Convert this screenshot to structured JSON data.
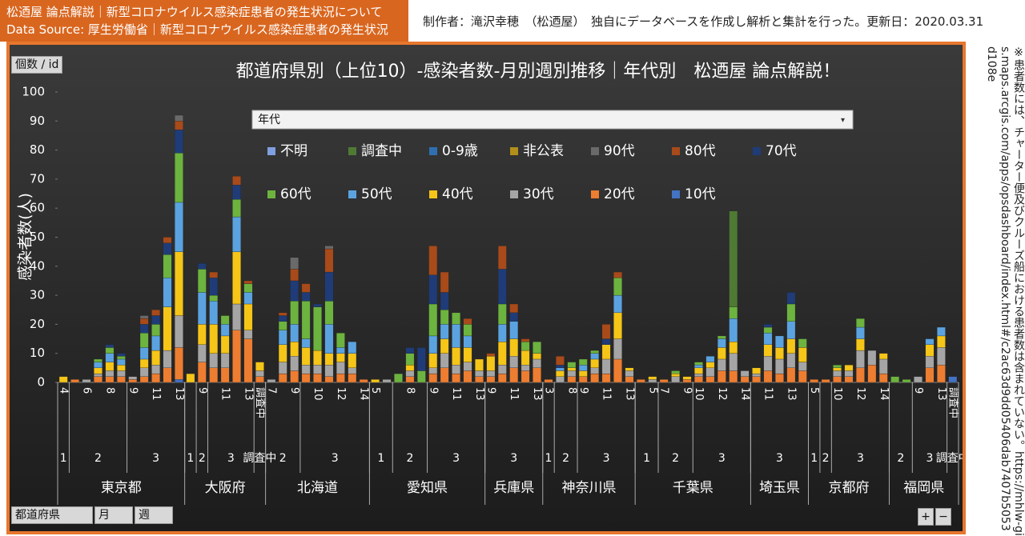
{
  "header": {
    "line1": "松迺屋 論点解説｜新型コロナウイルス感染症患者の発生状況について",
    "line2": "Data Source: 厚生労働省｜新型コロナウイルス感染症患者の発生状況",
    "credit": "制作者：滝沢幸穂　（松迺屋）　独自にデータベースを作成し解析と集計を行った。更新日：2020.03.31"
  },
  "note": "※患者数には、チャーター便及びクルーズ船における患者数は含まれていない。https://mhlw-gis.maps.arcgis.com/apps/opsdashboard/index.html#/c2ac63d9dd05406dab7407b5053d108e",
  "controls": {
    "value_field": "個数 / id",
    "series_filter": "年代",
    "row_fields": [
      "都道府県",
      "月",
      "週"
    ],
    "expand": "+",
    "collapse": "−"
  },
  "chart_data": {
    "type": "stacked_bar",
    "title": "都道府県別（上位10）-感染者数-月別週別推移｜年代別　松迺屋 論点解説！",
    "y_label": "感染者数(人)",
    "ylim": [
      0,
      100
    ],
    "yticks": [
      0,
      10,
      20,
      30,
      40,
      50,
      60,
      70,
      80,
      90,
      100
    ],
    "grid": false,
    "categories": [
      "4",
      null,
      "6",
      null,
      "8",
      null,
      "9",
      null,
      "11",
      null,
      "13",
      null,
      "9",
      null,
      "11",
      null,
      "13",
      "調査中",
      "7",
      null,
      "9",
      null,
      "10",
      null,
      "12",
      null,
      "14",
      "5",
      null,
      null,
      "8",
      null,
      "9",
      null,
      "11",
      null,
      "13",
      "9",
      null,
      "11",
      null,
      "13",
      "3",
      null,
      "8",
      "9",
      null,
      "11",
      null,
      "13",
      null,
      "5",
      "7",
      null,
      "9",
      "10",
      null,
      "12",
      null,
      "14",
      null,
      "11",
      null,
      "13",
      null,
      "5",
      null,
      "10",
      null,
      "12",
      null,
      "14",
      null,
      null,
      "9",
      null,
      "13",
      "調査中"
    ],
    "months": [
      "1",
      "2",
      "2",
      "2",
      "2",
      "2",
      "3",
      "3",
      "3",
      "3",
      "3",
      "1",
      "2",
      "3",
      "3",
      "3",
      "3",
      "調査中",
      "2",
      "2",
      "2",
      "3",
      "3",
      "3",
      "3",
      "3",
      "3",
      "1",
      "1",
      "2",
      "2",
      "2",
      "3",
      "3",
      "3",
      "3",
      "3",
      "3",
      "3",
      "3",
      "3",
      "3",
      "1",
      "2",
      "2",
      "3",
      "3",
      "3",
      "3",
      "3",
      "1",
      "1",
      "2",
      "2",
      "2",
      "3",
      "3",
      "3",
      "3",
      "3",
      "3",
      "3",
      "3",
      "3",
      "3",
      "1",
      "2",
      "3",
      "3",
      "3",
      "3",
      "3",
      "2",
      "2",
      "3",
      "3",
      "3",
      "調査中"
    ],
    "prefectures": [
      "東京都",
      "東京都",
      "東京都",
      "東京都",
      "東京都",
      "東京都",
      "東京都",
      "東京都",
      "東京都",
      "東京都",
      "東京都",
      "大阪府",
      "大阪府",
      "大阪府",
      "大阪府",
      "大阪府",
      "大阪府",
      "大阪府",
      "北海道",
      "北海道",
      "北海道",
      "北海道",
      "北海道",
      "北海道",
      "北海道",
      "北海道",
      "北海道",
      "愛知県",
      "愛知県",
      "愛知県",
      "愛知県",
      "愛知県",
      "愛知県",
      "愛知県",
      "愛知県",
      "愛知県",
      "愛知県",
      "兵庫県",
      "兵庫県",
      "兵庫県",
      "兵庫県",
      "兵庫県",
      "神奈川県",
      "神奈川県",
      "神奈川県",
      "神奈川県",
      "神奈川県",
      "神奈川県",
      "神奈川県",
      "神奈川県",
      "千葉県",
      "千葉県",
      "千葉県",
      "千葉県",
      "千葉県",
      "千葉県",
      "千葉県",
      "千葉県",
      "千葉県",
      "千葉県",
      "埼玉県",
      "埼玉県",
      "埼玉県",
      "埼玉県",
      "埼玉県",
      "京都府",
      "京都府",
      "京都府",
      "京都府",
      "京都府",
      "京都府",
      "京都府",
      "福岡県",
      "福岡県",
      "福岡県",
      "福岡県",
      "福岡県",
      "福岡県"
    ],
    "series": [
      {
        "name": "不明",
        "color": "#7f9fe0",
        "values": [
          0,
          0,
          0,
          0,
          0,
          0,
          0,
          0,
          0,
          0,
          0,
          0,
          0,
          0,
          0,
          0,
          0,
          0,
          0,
          0,
          0,
          0,
          0,
          0,
          0,
          0,
          0,
          0,
          0,
          0,
          0,
          0,
          0,
          0,
          0,
          0,
          0,
          0,
          0,
          0,
          0,
          0,
          0,
          0,
          0,
          0,
          0,
          0,
          0,
          0,
          0,
          0,
          0,
          0,
          0,
          0,
          0,
          0,
          0,
          0,
          0,
          0,
          0,
          0,
          0,
          0,
          0,
          0,
          0,
          0,
          0,
          0,
          0,
          0,
          0,
          0,
          0,
          0
        ]
      },
      {
        "name": "調査中",
        "color": "#4e7a34",
        "values": [
          0,
          0,
          0,
          0,
          0,
          0,
          0,
          0,
          0,
          0,
          0,
          0,
          0,
          0,
          0,
          0,
          0,
          0,
          0,
          0,
          0,
          0,
          0,
          0,
          0,
          0,
          0,
          0,
          0,
          0,
          0,
          0,
          0,
          0,
          0,
          0,
          0,
          0,
          0,
          0,
          0,
          0,
          0,
          0,
          0,
          0,
          0,
          0,
          0,
          0,
          0,
          0,
          0,
          0,
          0,
          0,
          0,
          0,
          33,
          0,
          0,
          0,
          0,
          0,
          0,
          0,
          0,
          0,
          0,
          0,
          0,
          0,
          0,
          0,
          0,
          0,
          0,
          0
        ]
      },
      {
        "name": "0-9歳",
        "color": "#2f6fb0",
        "values": [
          0,
          0,
          0,
          0,
          0,
          0,
          0,
          0,
          0,
          0,
          0,
          0,
          0,
          0,
          0,
          0,
          0,
          0,
          0,
          0,
          0,
          0,
          0,
          0,
          0,
          0,
          0,
          0,
          0,
          0,
          0,
          0,
          0,
          0,
          0,
          0,
          0,
          0,
          0,
          0,
          0,
          0,
          0,
          0,
          0,
          0,
          0,
          0,
          0,
          0,
          0,
          0,
          0,
          0,
          0,
          0,
          0,
          0,
          0,
          0,
          0,
          0,
          0,
          0,
          0,
          0,
          0,
          0,
          0,
          0,
          0,
          0,
          0,
          0,
          0,
          0,
          0,
          0
        ]
      },
      {
        "name": "非公表",
        "color": "#b08f1a",
        "values": [
          0,
          0,
          0,
          0,
          0,
          0,
          0,
          0,
          0,
          0,
          0,
          0,
          0,
          0,
          0,
          0,
          0,
          0,
          0,
          0,
          0,
          0,
          0,
          0,
          0,
          0,
          0,
          0,
          0,
          0,
          0,
          0,
          0,
          0,
          0,
          0,
          0,
          0,
          0,
          0,
          0,
          0,
          0,
          0,
          0,
          0,
          0,
          0,
          0,
          0,
          0,
          0,
          0,
          0,
          0,
          0,
          0,
          0,
          0,
          0,
          0,
          0,
          0,
          0,
          0,
          0,
          0,
          0,
          0,
          0,
          0,
          0,
          0,
          0,
          0,
          0,
          0,
          0
        ]
      },
      {
        "name": "90代",
        "color": "#6a6a6a",
        "values": [
          0,
          0,
          0,
          0,
          0,
          0,
          0,
          1,
          0,
          0,
          2,
          0,
          0,
          0,
          0,
          0,
          0,
          0,
          0,
          0,
          4,
          0,
          0,
          1,
          0,
          0,
          0,
          0,
          0,
          0,
          0,
          0,
          0,
          0,
          0,
          0,
          0,
          0,
          0,
          0,
          0,
          0,
          0,
          0,
          0,
          0,
          0,
          0,
          0,
          0,
          0,
          0,
          0,
          0,
          0,
          0,
          0,
          0,
          0,
          0,
          0,
          0,
          0,
          0,
          0,
          0,
          0,
          0,
          0,
          0,
          0,
          0,
          0,
          0,
          0,
          0,
          0,
          0
        ]
      },
      {
        "name": "80代",
        "color": "#a84a1a",
        "values": [
          0,
          0,
          0,
          0,
          0,
          0,
          0,
          2,
          2,
          2,
          3,
          0,
          0,
          2,
          0,
          3,
          1,
          0,
          0,
          1,
          4,
          3,
          0,
          8,
          0,
          0,
          0,
          0,
          0,
          0,
          0,
          0,
          10,
          7,
          0,
          2,
          0,
          1,
          8,
          3,
          1,
          0,
          0,
          3,
          0,
          0,
          0,
          5,
          2,
          0,
          0,
          0,
          0,
          0,
          0,
          0,
          0,
          0,
          0,
          0,
          0,
          0,
          0,
          0,
          0,
          0,
          0,
          0,
          0,
          0,
          0,
          0,
          0,
          0,
          0,
          0,
          0,
          0
        ]
      },
      {
        "name": "70代",
        "color": "#1f3c78",
        "values": [
          0,
          0,
          0,
          0,
          1,
          1,
          0,
          3,
          3,
          4,
          8,
          0,
          2,
          6,
          0,
          5,
          0,
          0,
          0,
          2,
          7,
          3,
          1,
          10,
          0,
          0,
          0,
          0,
          0,
          0,
          2,
          8,
          10,
          6,
          0,
          0,
          0,
          0,
          12,
          3,
          0,
          0,
          0,
          1,
          0,
          0,
          0,
          2,
          0,
          0,
          0,
          0,
          0,
          0,
          0,
          0,
          0,
          0,
          0,
          0,
          0,
          1,
          0,
          4,
          0,
          0,
          0,
          0,
          0,
          0,
          0,
          0,
          0,
          0,
          0,
          0,
          0,
          0
        ]
      },
      {
        "name": "60代",
        "color": "#6db33f",
        "values": [
          0,
          0,
          0,
          1,
          2,
          1,
          0,
          5,
          4,
          8,
          17,
          0,
          8,
          2,
          3,
          6,
          3,
          0,
          0,
          3,
          8,
          13,
          15,
          8,
          5,
          0,
          0,
          0,
          0,
          3,
          4,
          4,
          11,
          5,
          4,
          4,
          0,
          0,
          7,
          0,
          3,
          4,
          0,
          0,
          2,
          2,
          1,
          0,
          6,
          0,
          0,
          0,
          0,
          1,
          0,
          1,
          0,
          1,
          4,
          0,
          0,
          2,
          0,
          6,
          3,
          0,
          0,
          1,
          0,
          3,
          0,
          0,
          2,
          1,
          0,
          0,
          0,
          0
        ]
      },
      {
        "name": "50代",
        "color": "#5ba3e0",
        "values": [
          0,
          0,
          0,
          2,
          3,
          2,
          0,
          4,
          5,
          10,
          17,
          0,
          11,
          8,
          4,
          12,
          4,
          0,
          0,
          5,
          6,
          3,
          0,
          10,
          2,
          4,
          0,
          0,
          0,
          0,
          0,
          0,
          6,
          5,
          8,
          4,
          0,
          0,
          6,
          6,
          0,
          0,
          0,
          1,
          0,
          2,
          2,
          0,
          6,
          0,
          0,
          0,
          0,
          0,
          0,
          1,
          2,
          3,
          8,
          0,
          0,
          4,
          4,
          6,
          0,
          0,
          0,
          0,
          0,
          4,
          0,
          0,
          0,
          0,
          0,
          2,
          3,
          0
        ]
      },
      {
        "name": "40代",
        "color": "#f5c518",
        "values": [
          2,
          0,
          0,
          2,
          3,
          2,
          0,
          3,
          5,
          15,
          22,
          3,
          7,
          10,
          6,
          18,
          9,
          3,
          0,
          6,
          5,
          6,
          5,
          4,
          3,
          5,
          0,
          1,
          0,
          0,
          2,
          0,
          5,
          5,
          6,
          5,
          4,
          5,
          8,
          6,
          5,
          2,
          0,
          2,
          1,
          2,
          3,
          5,
          9,
          1,
          0,
          1,
          0,
          1,
          1,
          2,
          2,
          4,
          4,
          0,
          2,
          4,
          4,
          5,
          5,
          0,
          0,
          1,
          2,
          4,
          0,
          2,
          0,
          0,
          0,
          4,
          4,
          0
        ]
      },
      {
        "name": "30代",
        "color": "#a5a5a5",
        "values": [
          0,
          0,
          1,
          1,
          2,
          2,
          1,
          3,
          3,
          6,
          11,
          0,
          6,
          5,
          5,
          9,
          3,
          2,
          1,
          4,
          5,
          3,
          3,
          4,
          4,
          2,
          0,
          0,
          1,
          0,
          2,
          0,
          2,
          5,
          3,
          3,
          2,
          2,
          3,
          4,
          2,
          3,
          0,
          2,
          2,
          0,
          2,
          5,
          7,
          2,
          0,
          1,
          0,
          2,
          0,
          1,
          3,
          4,
          6,
          2,
          1,
          5,
          5,
          5,
          3,
          0,
          0,
          2,
          2,
          6,
          5,
          5,
          0,
          0,
          2,
          4,
          6,
          0
        ]
      },
      {
        "name": "20代",
        "color": "#ed7d31",
        "values": [
          0,
          1,
          0,
          2,
          2,
          2,
          1,
          2,
          3,
          5,
          11,
          0,
          7,
          5,
          5,
          18,
          15,
          2,
          0,
          3,
          4,
          3,
          3,
          2,
          3,
          3,
          1,
          0,
          0,
          0,
          2,
          0,
          3,
          5,
          3,
          4,
          2,
          2,
          3,
          5,
          4,
          5,
          1,
          0,
          2,
          2,
          3,
          3,
          8,
          2,
          1,
          0,
          1,
          0,
          1,
          2,
          2,
          4,
          4,
          2,
          2,
          4,
          3,
          5,
          4,
          1,
          1,
          2,
          2,
          5,
          6,
          3,
          0,
          0,
          0,
          5,
          6,
          0
        ]
      },
      {
        "name": "10代",
        "color": "#4472c4",
        "values": [
          0,
          0,
          0,
          0,
          0,
          0,
          0,
          0,
          0,
          0,
          1,
          0,
          0,
          0,
          0,
          0,
          0,
          0,
          0,
          0,
          0,
          0,
          0,
          0,
          0,
          0,
          0,
          0,
          0,
          0,
          0,
          0,
          0,
          0,
          0,
          0,
          0,
          0,
          0,
          0,
          0,
          0,
          0,
          0,
          0,
          0,
          0,
          0,
          0,
          0,
          0,
          0,
          0,
          0,
          0,
          0,
          0,
          0,
          0,
          0,
          0,
          0,
          0,
          0,
          0,
          0,
          0,
          0,
          0,
          0,
          0,
          0,
          0,
          0,
          0,
          0,
          0,
          2
        ]
      }
    ]
  }
}
